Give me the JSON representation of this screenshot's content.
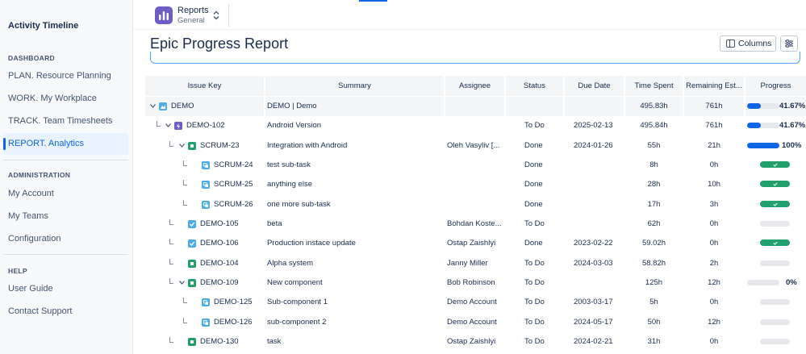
{
  "sidebar": {
    "app_title": "Activity Timeline",
    "sections": [
      {
        "title": "DASHBOARD",
        "items": [
          "PLAN. Resource Planning",
          "WORK. My Workplace",
          "TRACK. Team Timesheets",
          "REPORT. Analytics"
        ]
      },
      {
        "title": "ADMINISTRATION",
        "items": [
          "My Account",
          "My Teams",
          "Configuration"
        ]
      },
      {
        "title": "HELP",
        "items": [
          "User Guide",
          "Contact Support"
        ]
      }
    ],
    "active_item": "REPORT. Analytics"
  },
  "project": {
    "name": "Reports",
    "subtitle": "General",
    "icon": "bar-chart-icon",
    "color": "#6e5dc6"
  },
  "page": {
    "title": "Epic Progress Report",
    "columns_button": "Columns",
    "settings_icon": "sliders-icon"
  },
  "colors": {
    "accent": "#0c66e4",
    "done": "#22a06b",
    "story": "#22a06b",
    "task": "#4bade8",
    "subtask": "#4bade8",
    "epic": "#6e5dc6"
  },
  "table": {
    "headers": [
      "Issue Key",
      "Summary",
      "Assignee",
      "Status",
      "Due Date",
      "Time Spent",
      "Remaining Est...",
      "Progress"
    ],
    "rows": [
      {
        "key": "DEMO",
        "summary": "DEMO | Demo",
        "assignee": "",
        "status": "",
        "due": "",
        "spent": "495.83h",
        "remaining": "761h",
        "progress": 41.67,
        "progress_label": "41.67%",
        "done": false,
        "type": "project"
      },
      {
        "key": "DEMO-102",
        "summary": "Android Version",
        "assignee": "",
        "status": "To Do",
        "due": "2025-02-13",
        "spent": "495.84h",
        "remaining": "761h",
        "progress": 41.67,
        "progress_label": "41.67%",
        "done": false,
        "type": "epic"
      },
      {
        "key": "SCRUM-23",
        "summary": "Integration with Android",
        "assignee": "Oleh Vasyliv [...",
        "status": "Done",
        "due": "2024-01-26",
        "spent": "55h",
        "remaining": "21h",
        "progress": 100,
        "progress_label": "100%",
        "done": false,
        "type": "story"
      },
      {
        "key": "SCRUM-24",
        "summary": "test sub-task",
        "assignee": "",
        "status": "Done",
        "due": "",
        "spent": "8h",
        "remaining": "0h",
        "progress": 100,
        "progress_label": "",
        "done": true,
        "type": "subtask"
      },
      {
        "key": "SCRUM-25",
        "summary": "anything else",
        "assignee": "",
        "status": "Done",
        "due": "",
        "spent": "28h",
        "remaining": "10h",
        "progress": 100,
        "progress_label": "",
        "done": true,
        "type": "subtask"
      },
      {
        "key": "SCRUM-26",
        "summary": "one more sub-task",
        "assignee": "",
        "status": "Done",
        "due": "",
        "spent": "17h",
        "remaining": "3h",
        "progress": 100,
        "progress_label": "",
        "done": true,
        "type": "subtask"
      },
      {
        "key": "DEMO-105",
        "summary": "beta",
        "assignee": "Bohdan Koste...",
        "status": "To Do",
        "due": "",
        "spent": "62h",
        "remaining": "0h",
        "progress": 0,
        "progress_label": "",
        "done": false,
        "type": "task"
      },
      {
        "key": "DEMO-106",
        "summary": "Production instace update",
        "assignee": "Ostap Zaishlyi",
        "status": "Done",
        "due": "2023-02-22",
        "spent": "59.02h",
        "remaining": "0h",
        "progress": 100,
        "progress_label": "",
        "done": true,
        "type": "task"
      },
      {
        "key": "DEMO-104",
        "summary": "Alpha system",
        "assignee": "Janny Miller",
        "status": "To Do",
        "due": "2024-03-03",
        "spent": "58.82h",
        "remaining": "2h",
        "progress": 0,
        "progress_label": "",
        "done": false,
        "type": "story"
      },
      {
        "key": "DEMO-109",
        "summary": "New component",
        "assignee": "Bob Robinson",
        "status": "To Do",
        "due": "",
        "spent": "125h",
        "remaining": "12h",
        "progress": 0,
        "progress_label": "0%",
        "done": false,
        "type": "story"
      },
      {
        "key": "DEMO-125",
        "summary": "Sub-component 1",
        "assignee": "Demo Account",
        "status": "To Do",
        "due": "2003-03-17",
        "spent": "5h",
        "remaining": "0h",
        "progress": 0,
        "progress_label": "",
        "done": false,
        "type": "subtask"
      },
      {
        "key": "DEMO-126",
        "summary": "sub-component 2",
        "assignee": "Demo Account",
        "status": "To Do",
        "due": "2024-05-17",
        "spent": "50h",
        "remaining": "12h",
        "progress": 0,
        "progress_label": "",
        "done": false,
        "type": "subtask"
      },
      {
        "key": "DEMO-130",
        "summary": "task",
        "assignee": "Ostap Zaishlyi",
        "status": "To Do",
        "due": "2024-02-21",
        "spent": "31h",
        "remaining": "0h",
        "progress": 0,
        "progress_label": "",
        "done": false,
        "type": "story"
      }
    ]
  }
}
